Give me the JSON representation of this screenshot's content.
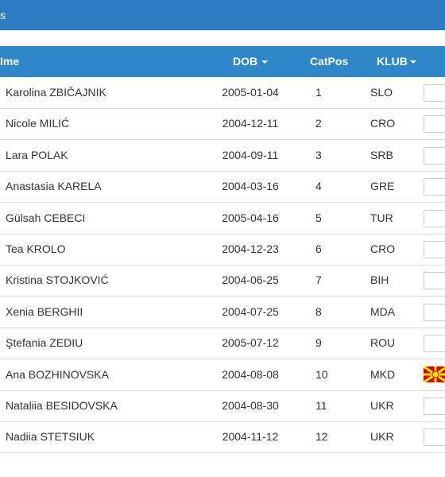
{
  "top_bar": {
    "title": "s"
  },
  "table": {
    "headers": [
      "Ime",
      "DOB",
      "CatPos",
      "KLUB"
    ],
    "rows": [
      [
        "Karolina ZBIČAJNIK",
        "2005-01-04",
        1,
        "SLO"
      ],
      [
        "Nicole MILIĆ",
        "2004-12-11",
        2,
        "CRO"
      ],
      [
        "Lara POLAK",
        "2004-09-11",
        3,
        "SRB"
      ],
      [
        "Anastasia KARELA",
        "2004-03-16",
        4,
        "GRE"
      ],
      [
        "Gülsah CEBECI",
        "2005-04-16",
        5,
        "TUR"
      ],
      [
        "Tea KROLO",
        "2004-12-23",
        6,
        "CRO"
      ],
      [
        "Kristina STOJKOVIĆ",
        "2004-06-25",
        7,
        "BIH"
      ],
      [
        "Xenia BERGHII",
        "2004-07-25",
        8,
        "MDA"
      ],
      [
        "Ştefania ZEDIU",
        "2005-07-12",
        9,
        "ROU"
      ],
      [
        "Ana BOZHINOVSKA",
        "2004-08-08",
        10,
        "MKD"
      ],
      [
        "Nataliia BESIDOVSKA",
        "2004-08-30",
        11,
        "UKR"
      ],
      [
        "Nadiia STETSIUK",
        "2004-11-12",
        12,
        "UKR"
      ]
    ]
  }
}
